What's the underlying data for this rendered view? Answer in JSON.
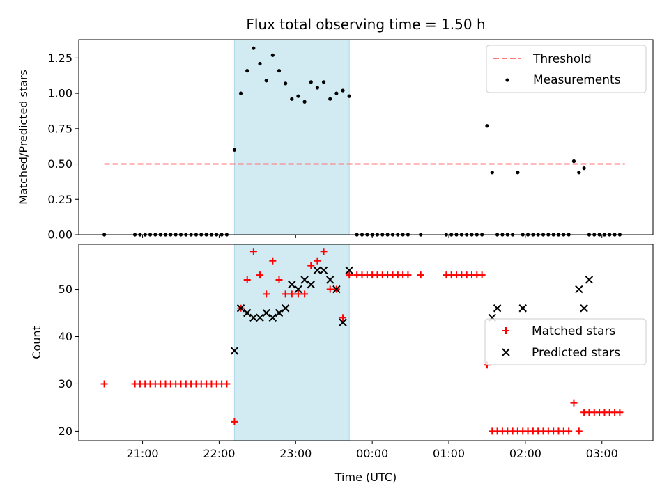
{
  "title": "Flux total observing time = 1.50 h",
  "colors": {
    "threshold": "#ff7777",
    "measurement": "#000000",
    "matched": "#ff0000",
    "predicted": "#000000",
    "shade": "#add8e6"
  },
  "chart_data": [
    {
      "type": "scatter",
      "ylabel": "Matched/Predicted stars",
      "ylim": [
        0,
        1.38
      ],
      "yticks": [
        "0.00",
        "0.25",
        "0.50",
        "0.75",
        "1.00",
        "1.25"
      ],
      "ytick_values": [
        0,
        0.25,
        0.5,
        0.75,
        1.0,
        1.25
      ],
      "shaded_span": [
        "22:12",
        "23:42"
      ],
      "legend_position": "top-right",
      "threshold": {
        "name": "Threshold",
        "value": 0.5,
        "x_range": [
          "20:30",
          "03:18"
        ]
      },
      "series": [
        {
          "name": "Measurements",
          "x": [
            "20:30",
            "20:54",
            "20:58",
            "21:02",
            "21:06",
            "21:10",
            "21:14",
            "21:18",
            "21:22",
            "21:26",
            "21:30",
            "21:34",
            "21:38",
            "21:42",
            "21:46",
            "21:50",
            "21:54",
            "21:58",
            "22:02",
            "22:06",
            "22:12",
            "22:17",
            "22:22",
            "22:27",
            "22:32",
            "22:37",
            "22:42",
            "22:47",
            "22:52",
            "22:57",
            "23:02",
            "23:07",
            "23:12",
            "23:17",
            "23:22",
            "23:27",
            "23:32",
            "23:37",
            "23:42",
            "23:48",
            "23:52",
            "23:56",
            "00:00",
            "00:04",
            "00:08",
            "00:12",
            "00:16",
            "00:20",
            "00:24",
            "00:28",
            "00:38",
            "00:58",
            "01:02",
            "01:06",
            "01:10",
            "01:14",
            "01:18",
            "01:22",
            "01:26",
            "01:30",
            "01:34",
            "01:38",
            "01:42",
            "01:46",
            "01:50",
            "01:54",
            "01:58",
            "02:02",
            "02:06",
            "02:10",
            "02:14",
            "02:18",
            "02:22",
            "02:26",
            "02:30",
            "02:34",
            "02:38",
            "02:42",
            "02:46",
            "02:50",
            "02:54",
            "02:58",
            "03:02",
            "03:06",
            "03:10",
            "03:14"
          ],
          "y": [
            0,
            0,
            0,
            0,
            0,
            0,
            0,
            0,
            0,
            0,
            0,
            0,
            0,
            0,
            0,
            0,
            0,
            0,
            0,
            0,
            0.6,
            1.0,
            1.16,
            1.32,
            1.21,
            1.09,
            1.27,
            1.16,
            1.07,
            0.96,
            0.98,
            0.94,
            1.08,
            1.04,
            1.08,
            0.96,
            1.0,
            1.02,
            0.98,
            0,
            0,
            0,
            0,
            0,
            0,
            0,
            0,
            0,
            0,
            0,
            0,
            0,
            0,
            0,
            0,
            0,
            0,
            0,
            0,
            0.77,
            0.44,
            0,
            0,
            0,
            0,
            0.44,
            0,
            0,
            0,
            0,
            0,
            0,
            0,
            0,
            0,
            0,
            0.52,
            0.44,
            0.47,
            0,
            0,
            0,
            0,
            0,
            0,
            0
          ]
        }
      ]
    },
    {
      "type": "scatter",
      "xlabel": "Time (UTC)",
      "ylabel": "Count",
      "ylim": [
        18,
        59.5
      ],
      "yticks": [
        "20",
        "30",
        "40",
        "50"
      ],
      "ytick_values": [
        20,
        30,
        40,
        50
      ],
      "xticks": [
        "21:00",
        "22:00",
        "23:00",
        "00:00",
        "01:00",
        "02:00",
        "03:00"
      ],
      "shaded_span": [
        "22:12",
        "23:42"
      ],
      "legend_position": "center-right",
      "series": [
        {
          "name": "Matched stars",
          "x": [
            "20:30",
            "20:54",
            "20:58",
            "21:02",
            "21:06",
            "21:10",
            "21:14",
            "21:18",
            "21:22",
            "21:26",
            "21:30",
            "21:34",
            "21:38",
            "21:42",
            "21:46",
            "21:50",
            "21:54",
            "21:58",
            "22:02",
            "22:06",
            "22:12",
            "22:17",
            "22:22",
            "22:27",
            "22:32",
            "22:37",
            "22:42",
            "22:47",
            "22:52",
            "22:57",
            "23:02",
            "23:07",
            "23:12",
            "23:17",
            "23:22",
            "23:27",
            "23:32",
            "23:37",
            "23:42",
            "23:48",
            "23:52",
            "23:56",
            "00:00",
            "00:04",
            "00:08",
            "00:12",
            "00:16",
            "00:20",
            "00:24",
            "00:28",
            "00:38",
            "00:58",
            "01:02",
            "01:06",
            "01:10",
            "01:14",
            "01:18",
            "01:22",
            "01:26",
            "01:30",
            "01:34",
            "01:38",
            "01:42",
            "01:46",
            "01:50",
            "01:54",
            "01:58",
            "02:02",
            "02:06",
            "02:10",
            "02:14",
            "02:18",
            "02:22",
            "02:26",
            "02:30",
            "02:34",
            "02:38",
            "02:42",
            "02:46",
            "02:50",
            "02:54",
            "02:58",
            "03:02",
            "03:06",
            "03:10",
            "03:14"
          ],
          "y": [
            30,
            30,
            30,
            30,
            30,
            30,
            30,
            30,
            30,
            30,
            30,
            30,
            30,
            30,
            30,
            30,
            30,
            30,
            30,
            30,
            22,
            46,
            52,
            58,
            53,
            49,
            56,
            52,
            49,
            49,
            49,
            49,
            55,
            56,
            58,
            50,
            50,
            44,
            53,
            53,
            53,
            53,
            53,
            53,
            53,
            53,
            53,
            53,
            53,
            53,
            53,
            53,
            53,
            53,
            53,
            53,
            53,
            53,
            53,
            34,
            20,
            20,
            20,
            20,
            20,
            20,
            20,
            20,
            20,
            20,
            20,
            20,
            20,
            20,
            20,
            20,
            26,
            20,
            24,
            24,
            24,
            24,
            24,
            24,
            24,
            24
          ]
        },
        {
          "name": "Predicted stars",
          "x": [
            "22:12",
            "22:17",
            "22:22",
            "22:27",
            "22:32",
            "22:37",
            "22:42",
            "22:47",
            "22:52",
            "22:57",
            "23:02",
            "23:07",
            "23:12",
            "23:17",
            "23:22",
            "23:27",
            "23:32",
            "23:37",
            "23:42",
            "01:34",
            "01:38",
            "01:58",
            "02:42",
            "02:46",
            "02:50"
          ],
          "y": [
            37,
            46,
            45,
            44,
            44,
            45,
            44,
            45,
            46,
            51,
            50,
            52,
            51,
            54,
            54,
            52,
            50,
            43,
            54,
            44,
            46,
            46,
            50,
            46,
            52
          ]
        }
      ]
    }
  ]
}
